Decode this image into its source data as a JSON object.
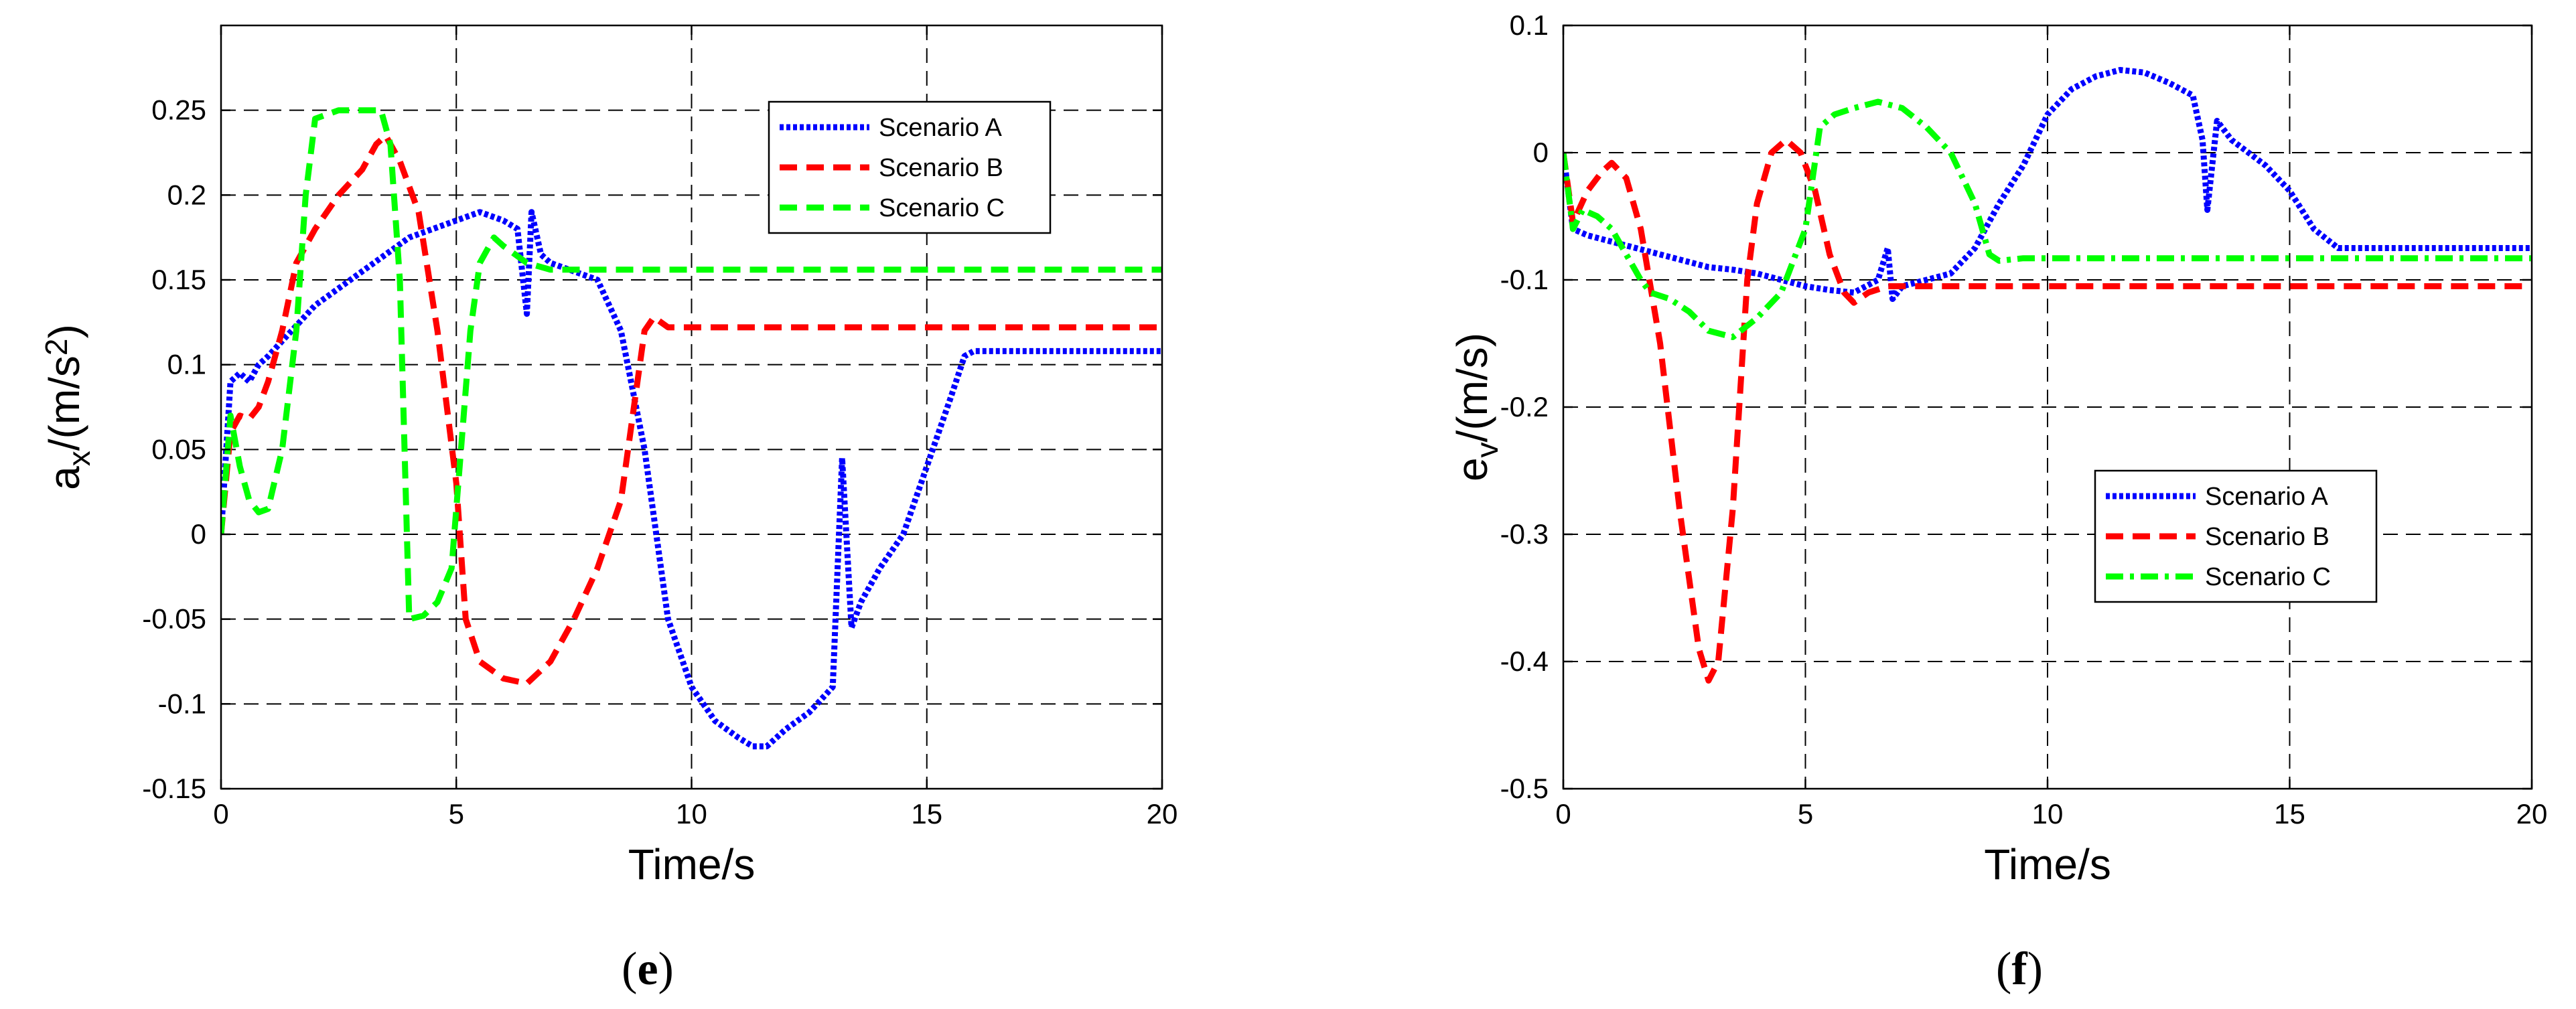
{
  "chart_data": [
    {
      "type": "line",
      "panel_label": "e",
      "xlabel": "Time/s",
      "ylabel": {
        "base": "a",
        "sub": "x",
        "rest": "/(m/s",
        "sup": "2",
        "close": ")"
      },
      "xlim": [
        0,
        20
      ],
      "ylim": [
        -0.15,
        0.3
      ],
      "xticks": [
        0,
        5,
        10,
        15,
        20
      ],
      "xtick_labels": [
        "0",
        "5",
        "10",
        "15",
        "20"
      ],
      "yticks": [
        -0.15,
        -0.1,
        -0.05,
        0,
        0.05,
        0.1,
        0.15,
        0.2,
        0.25
      ],
      "ytick_labels": [
        "-0.15",
        "-0.1",
        "-0.05",
        "0",
        "0.05",
        "0.1",
        "0.15",
        "0.2",
        "0.25"
      ],
      "grid": true,
      "legend_position": "top-right",
      "series": [
        {
          "name": "Scenario A",
          "color": "#0000ff",
          "style": "dotted",
          "x": [
            0,
            0.2,
            0.4,
            0.6,
            0.8,
            1.0,
            1.5,
            2.0,
            2.5,
            3.0,
            3.5,
            4.0,
            4.5,
            5.0,
            5.5,
            6.0,
            6.3,
            6.5,
            6.6,
            6.8,
            7.0,
            7.5,
            8.0,
            8.5,
            9.0,
            9.5,
            10.0,
            10.5,
            11.0,
            11.3,
            11.6,
            12.0,
            12.5,
            13.0,
            13.2,
            13.4,
            13.6,
            14.0,
            14.5,
            15.0,
            15.5,
            15.8,
            16.0,
            17.0,
            18.0,
            19.0,
            20.0
          ],
          "y": [
            0,
            0.09,
            0.095,
            0.09,
            0.1,
            0.105,
            0.12,
            0.135,
            0.145,
            0.155,
            0.165,
            0.175,
            0.18,
            0.185,
            0.19,
            0.185,
            0.18,
            0.13,
            0.19,
            0.165,
            0.16,
            0.155,
            0.15,
            0.12,
            0.05,
            -0.05,
            -0.09,
            -0.11,
            -0.12,
            -0.125,
            -0.125,
            -0.115,
            -0.105,
            -0.09,
            0.045,
            -0.055,
            -0.04,
            -0.02,
            0.0,
            0.04,
            0.08,
            0.105,
            0.108,
            0.108,
            0.108,
            0.108,
            0.108
          ]
        },
        {
          "name": "Scenario B",
          "color": "#ff0000",
          "style": "dashed",
          "x": [
            0,
            0.2,
            0.4,
            0.6,
            0.8,
            1.0,
            1.3,
            1.6,
            2.0,
            2.5,
            3.0,
            3.3,
            3.5,
            3.8,
            4.2,
            4.6,
            5.0,
            5.2,
            5.5,
            6.0,
            6.5,
            7.0,
            7.5,
            8.0,
            8.5,
            8.8,
            9.0,
            9.2,
            9.5,
            10.0,
            12.0,
            15.0,
            20.0
          ],
          "y": [
            0,
            0.06,
            0.07,
            0.068,
            0.075,
            0.09,
            0.12,
            0.16,
            0.18,
            0.2,
            0.215,
            0.23,
            0.235,
            0.22,
            0.19,
            0.12,
            0.03,
            -0.05,
            -0.075,
            -0.085,
            -0.088,
            -0.075,
            -0.05,
            -0.02,
            0.02,
            0.08,
            0.12,
            0.128,
            0.122,
            0.122,
            0.122,
            0.122,
            0.122
          ]
        },
        {
          "name": "Scenario C",
          "color": "#00ff00",
          "style": "dashed",
          "x": [
            0,
            0.2,
            0.4,
            0.6,
            0.8,
            1.0,
            1.3,
            1.6,
            1.8,
            2.0,
            2.5,
            3.0,
            3.4,
            3.6,
            3.8,
            4.0,
            4.3,
            4.6,
            4.9,
            5.1,
            5.3,
            5.5,
            5.8,
            6.0,
            6.5,
            7.0,
            8.0,
            10.0,
            15.0,
            20.0
          ],
          "y": [
            0,
            0.07,
            0.04,
            0.02,
            0.013,
            0.015,
            0.05,
            0.12,
            0.2,
            0.245,
            0.25,
            0.25,
            0.25,
            0.23,
            0.15,
            -0.05,
            -0.048,
            -0.04,
            -0.02,
            0.05,
            0.12,
            0.16,
            0.175,
            0.17,
            0.16,
            0.156,
            0.156,
            0.156,
            0.156,
            0.156
          ]
        }
      ]
    },
    {
      "type": "line",
      "panel_label": "f",
      "xlabel": "Time/s",
      "ylabel": {
        "base": "e",
        "sub": "v",
        "rest": "/(m/s)",
        "sup": "",
        "close": ""
      },
      "xlim": [
        0,
        20
      ],
      "ylim": [
        -0.5,
        0.1
      ],
      "xticks": [
        0,
        5,
        10,
        15,
        20
      ],
      "xtick_labels": [
        "0",
        "5",
        "10",
        "15",
        "20"
      ],
      "yticks": [
        -0.5,
        -0.4,
        -0.3,
        -0.2,
        -0.1,
        0,
        0.1
      ],
      "ytick_labels": [
        "-0.5",
        "-0.4",
        "-0.3",
        "-0.2",
        "-0.1",
        "0",
        "0.1"
      ],
      "grid": true,
      "legend_position": "center-right",
      "series": [
        {
          "name": "Scenario A",
          "color": "#0000ff",
          "style": "dotted",
          "x": [
            0,
            0.2,
            0.5,
            1.0,
            1.5,
            2.0,
            2.5,
            3.0,
            3.5,
            4.0,
            4.5,
            5.0,
            5.5,
            6.0,
            6.5,
            6.7,
            6.8,
            7.0,
            7.5,
            8.0,
            8.5,
            9.0,
            9.5,
            10.0,
            10.5,
            11.0,
            11.5,
            12.0,
            12.5,
            13.0,
            13.2,
            13.3,
            13.5,
            13.8,
            14.5,
            15.0,
            15.5,
            16.0,
            17.0,
            18.0,
            19.0,
            20.0
          ],
          "y": [
            0,
            -0.06,
            -0.065,
            -0.07,
            -0.075,
            -0.08,
            -0.085,
            -0.09,
            -0.092,
            -0.095,
            -0.1,
            -0.105,
            -0.108,
            -0.11,
            -0.1,
            -0.075,
            -0.115,
            -0.105,
            -0.1,
            -0.095,
            -0.075,
            -0.04,
            -0.01,
            0.03,
            0.05,
            0.06,
            0.065,
            0.063,
            0.055,
            0.045,
            0.01,
            -0.045,
            0.025,
            0.01,
            -0.01,
            -0.03,
            -0.06,
            -0.075,
            -0.075,
            -0.075,
            -0.075,
            -0.075
          ]
        },
        {
          "name": "Scenario B",
          "color": "#ff0000",
          "style": "dashed",
          "x": [
            0,
            0.2,
            0.5,
            0.8,
            1.0,
            1.3,
            1.6,
            2.0,
            2.4,
            2.8,
            3.0,
            3.2,
            3.5,
            3.8,
            4.0,
            4.3,
            4.6,
            4.9,
            5.2,
            5.5,
            5.8,
            6.0,
            6.3,
            6.7,
            7.0,
            7.5,
            8.0,
            10.0,
            15.0,
            20.0
          ],
          "y": [
            0,
            -0.055,
            -0.03,
            -0.015,
            -0.008,
            -0.02,
            -0.06,
            -0.15,
            -0.28,
            -0.39,
            -0.415,
            -0.4,
            -0.28,
            -0.1,
            -0.04,
            0.0,
            0.01,
            0.0,
            -0.03,
            -0.08,
            -0.11,
            -0.118,
            -0.11,
            -0.105,
            -0.105,
            -0.105,
            -0.105,
            -0.105,
            -0.105,
            -0.105
          ]
        },
        {
          "name": "Scenario C",
          "color": "#00ff00",
          "style": "dashdot",
          "x": [
            0,
            0.2,
            0.4,
            0.7,
            1.0,
            1.3,
            1.6,
            1.8,
            2.2,
            2.6,
            3.0,
            3.5,
            4.0,
            4.5,
            5.0,
            5.3,
            5.6,
            6.0,
            6.5,
            7.0,
            7.5,
            8.0,
            8.5,
            8.8,
            9.0,
            9.5,
            10.0,
            15.0,
            20.0
          ],
          "y": [
            0,
            -0.06,
            -0.045,
            -0.05,
            -0.06,
            -0.08,
            -0.1,
            -0.11,
            -0.115,
            -0.125,
            -0.14,
            -0.145,
            -0.13,
            -0.11,
            -0.06,
            0.02,
            0.03,
            0.035,
            0.04,
            0.035,
            0.02,
            0.0,
            -0.04,
            -0.08,
            -0.085,
            -0.083,
            -0.083,
            -0.083,
            -0.083
          ]
        }
      ]
    }
  ]
}
